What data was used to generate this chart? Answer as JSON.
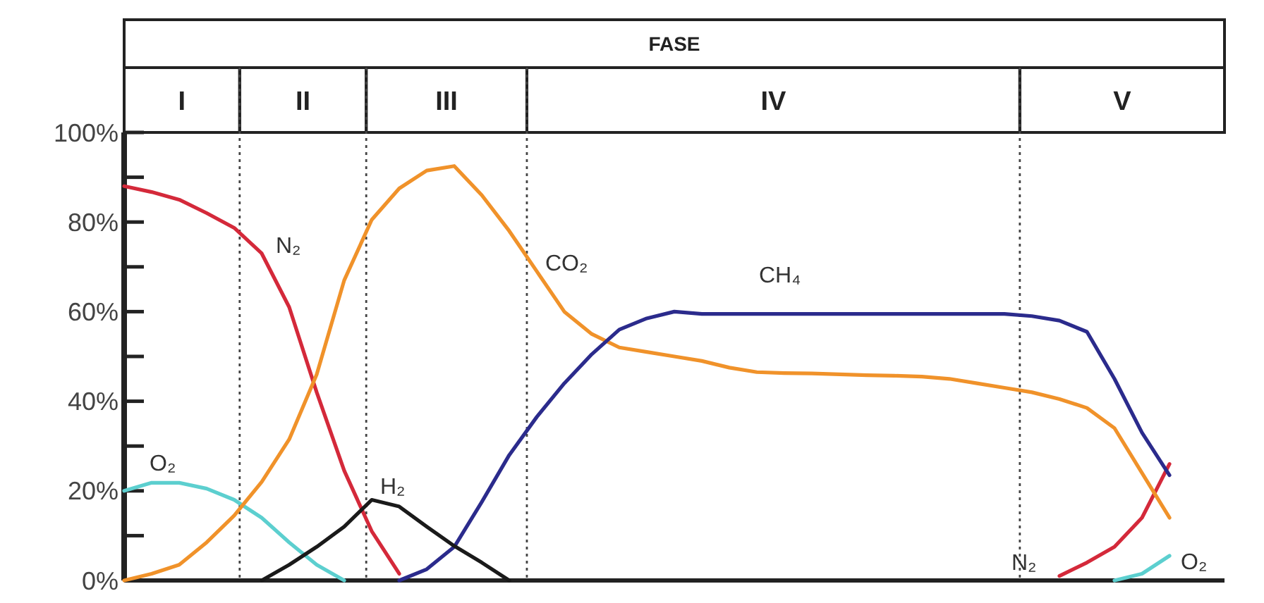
{
  "chart_data": [
    {
      "type": "other",
      "title": "FASE",
      "categories": [
        "I",
        "II",
        "III",
        "IV",
        "V"
      ]
    },
    {
      "type": "line",
      "ylim": [
        0,
        100
      ],
      "tick_labels": "y",
      "grid": false,
      "marker": "none",
      "line_style": "solid",
      "yticks": [
        {
          "value": 0,
          "label": "0%"
        },
        {
          "value": 10,
          "label": null
        },
        {
          "value": 20,
          "label": "20%"
        },
        {
          "value": 30,
          "label": null
        },
        {
          "value": 40,
          "label": "40%"
        },
        {
          "value": 50,
          "label": null
        },
        {
          "value": 60,
          "label": "60%"
        },
        {
          "value": 70,
          "label": null
        },
        {
          "value": 80,
          "label": "80%"
        },
        {
          "value": 90,
          "label": null
        },
        {
          "value": 100,
          "label": "100%"
        }
      ],
      "categories": [
        null,
        null,
        null,
        null,
        null,
        null,
        null,
        null,
        null,
        null,
        null,
        null,
        null,
        null,
        null,
        null,
        null,
        null,
        null,
        null,
        null,
        null,
        null,
        null,
        null,
        null,
        null,
        null,
        null,
        null,
        null,
        null,
        null,
        null,
        null,
        null,
        null,
        null,
        null
      ],
      "series": [
        {
          "name": "N₂",
          "color": "#d4293a",
          "values": [
            88,
            86.7,
            85,
            82,
            78.7,
            73,
            61,
            42,
            24.5,
            11,
            1.5,
            null,
            null,
            null,
            null,
            null,
            null,
            null,
            null,
            null,
            null,
            null,
            null,
            null,
            null,
            null,
            null,
            null,
            null,
            null,
            null,
            null,
            null,
            null,
            1,
            4,
            7.5,
            14,
            26
          ]
        },
        {
          "name": "O₂",
          "color": "#5ccfcf",
          "values": [
            20,
            21.8,
            21.8,
            20.5,
            18,
            14,
            8.5,
            3.5,
            0,
            null,
            null,
            null,
            null,
            null,
            null,
            null,
            null,
            null,
            null,
            null,
            null,
            null,
            null,
            null,
            null,
            null,
            null,
            null,
            null,
            null,
            null,
            null,
            null,
            null,
            null,
            null,
            0,
            1.5,
            5.5
          ]
        },
        {
          "name": "CO₂",
          "color": "#f0922a",
          "values": [
            0,
            1.5,
            3.5,
            8.5,
            14.5,
            22,
            31.5,
            46,
            67,
            80.5,
            87.5,
            91.5,
            92.5,
            86,
            78,
            69,
            60,
            55,
            52,
            51,
            50,
            49,
            47.5,
            46.5,
            46.3,
            46.2,
            46,
            45.8,
            45.7,
            45.5,
            45,
            44,
            43,
            42,
            40.5,
            38.5,
            34,
            24,
            14
          ]
        },
        {
          "name": "CH₄",
          "color": "#2b2b8c",
          "values": [
            null,
            null,
            null,
            null,
            null,
            null,
            null,
            null,
            null,
            null,
            0,
            2.5,
            7.5,
            17.5,
            28,
            36.5,
            44,
            50.5,
            56,
            58.5,
            60,
            59.5,
            59.5,
            59.5,
            59.5,
            59.5,
            59.5,
            59.5,
            59.5,
            59.5,
            59.5,
            59.5,
            59.5,
            59,
            58,
            55.5,
            45,
            33,
            23.5
          ]
        },
        {
          "name": "H₂",
          "color": "#1a1a1a",
          "values": [
            null,
            null,
            null,
            null,
            null,
            0,
            3.5,
            7.5,
            12,
            18,
            16.5,
            12,
            7.7,
            4,
            0,
            null,
            null,
            null,
            null,
            null,
            null,
            null,
            null,
            null,
            null,
            null,
            null,
            null,
            null,
            null,
            null,
            null,
            null,
            null,
            null,
            null,
            null,
            null,
            null
          ]
        }
      ]
    }
  ]
}
